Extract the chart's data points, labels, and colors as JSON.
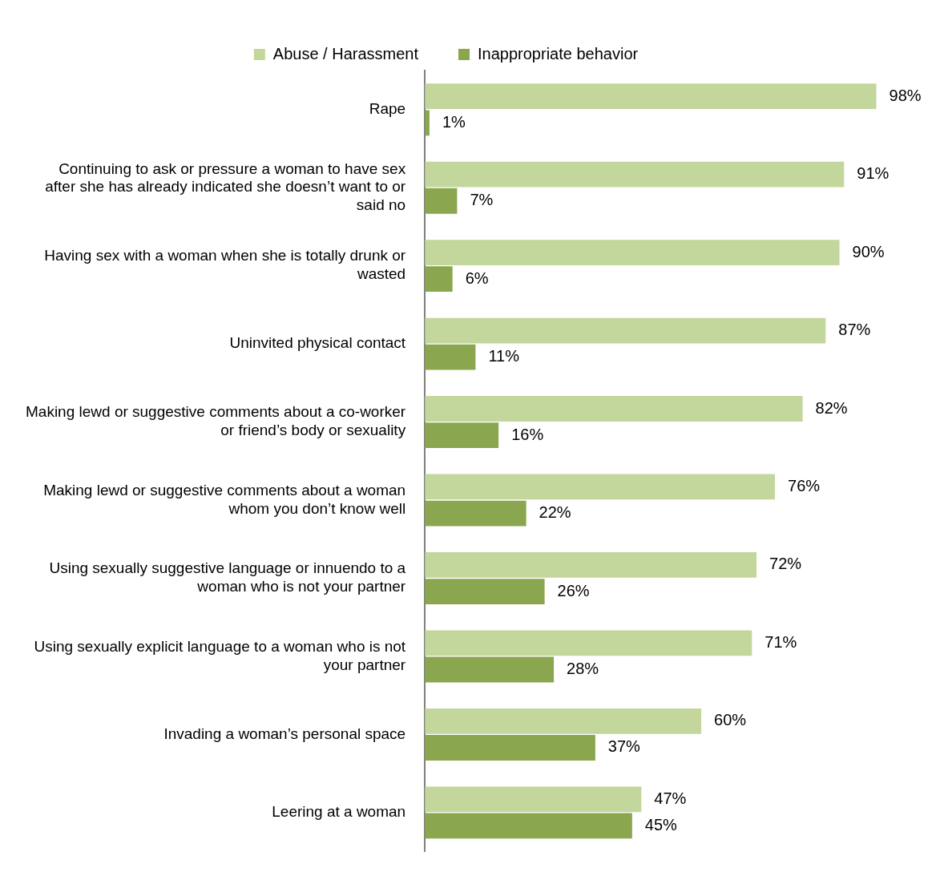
{
  "chart_data": {
    "type": "bar",
    "orientation": "horizontal",
    "categories": [
      "Rape",
      "Continuing to ask or pressure a woman to have sex after she has already indicated she doesn’t want to or said no",
      "Having sex with a woman when she is totally drunk or wasted",
      "Uninvited physical contact",
      "Making lewd or suggestive comments about a co-worker or friend’s body or sexuality",
      "Making lewd or suggestive comments about a woman whom you don’t know well",
      "Using sexually suggestive language or innuendo to a woman who is not your partner",
      "Using sexually explicit language to a woman who is not your partner",
      "Invading a woman’s personal space",
      "Leering at a woman"
    ],
    "series": [
      {
        "name": "Abuse / Harassment",
        "color": "#c3d69b",
        "values": [
          98,
          91,
          90,
          87,
          82,
          76,
          72,
          71,
          60,
          47
        ],
        "value_labels": [
          "98%",
          "91%",
          "90%",
          "87%",
          "82%",
          "76%",
          "72%",
          "71%",
          "60%",
          "47%"
        ]
      },
      {
        "name": "Inappropriate behavior",
        "color": "#8aa64f",
        "values": [
          1,
          7,
          6,
          11,
          16,
          22,
          26,
          28,
          37,
          45
        ],
        "value_labels": [
          "1%",
          "7%",
          "6%",
          "11%",
          "16%",
          "22%",
          "26%",
          "28%",
          "37%",
          "45%"
        ]
      }
    ],
    "tick_labels": "y",
    "grid": false,
    "legend": "top"
  }
}
